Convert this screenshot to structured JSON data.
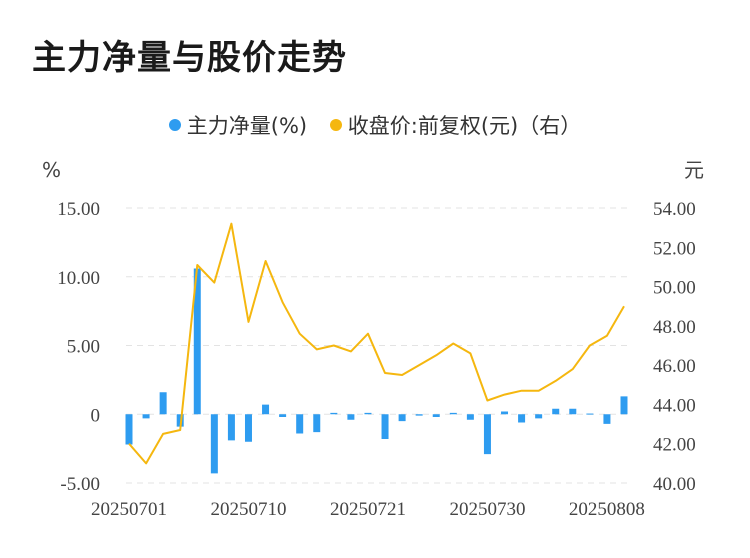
{
  "title": "主力净量与股价走势",
  "legend": {
    "series1": "主力净量(%)",
    "series2": "收盘价:前复权(元)（右）"
  },
  "colors": {
    "bar": "#2e9cf0",
    "line": "#f5b70f",
    "grid": "#e3e3e3"
  },
  "chart_data": {
    "type": "bar+line",
    "left_unit": "%",
    "right_unit": "元",
    "y_left": {
      "min": -5,
      "max": 15,
      "ticks": [
        "15.00",
        "10.00",
        "5.00",
        "0",
        "-5.00"
      ],
      "tick_values": [
        15,
        10,
        5,
        0,
        -5
      ]
    },
    "y_right": {
      "min": 40,
      "max": 54,
      "ticks": [
        "54.00",
        "52.00",
        "50.00",
        "48.00",
        "46.00",
        "44.00",
        "42.00",
        "40.00"
      ],
      "tick_values": [
        54,
        52,
        50,
        48,
        46,
        44,
        42,
        40
      ]
    },
    "x_labels": [
      "20250701",
      "20250710",
      "20250721",
      "20250730",
      "20250808"
    ],
    "x_label_index": [
      0,
      7,
      14,
      21,
      28
    ],
    "series": [
      {
        "name": "主力净量(%)",
        "type": "bar",
        "values": [
          -2.2,
          -0.3,
          1.6,
          -0.9,
          10.6,
          -4.3,
          -1.9,
          -2.0,
          0.7,
          -0.2,
          -1.4,
          -1.3,
          0.1,
          -0.4,
          0.1,
          -1.8,
          -0.5,
          -0.1,
          -0.2,
          0.1,
          -0.4,
          -2.9,
          0.2,
          -0.6,
          -0.3,
          0.4,
          0.4,
          0.05,
          -0.7,
          1.3
        ]
      },
      {
        "name": "收盘价:前复权(元)（右）",
        "type": "line",
        "values": [
          42.0,
          41.0,
          42.5,
          42.7,
          51.1,
          50.2,
          53.2,
          48.2,
          51.3,
          49.2,
          47.6,
          46.8,
          47.0,
          46.7,
          47.6,
          45.6,
          45.5,
          46.0,
          46.5,
          47.1,
          46.6,
          44.2,
          44.5,
          44.7,
          44.7,
          45.2,
          45.8,
          47.0,
          47.5,
          49.0
        ]
      }
    ]
  }
}
